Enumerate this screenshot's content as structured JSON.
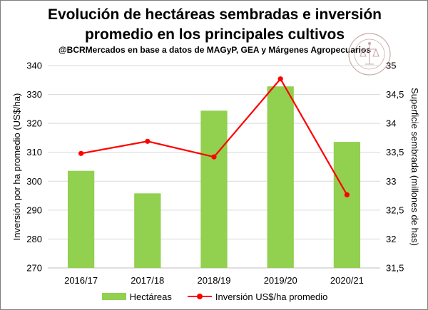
{
  "chart_data": {
    "type": "bar+line",
    "title_line1": "Evolución de hectáreas sembradas e inversión",
    "title_line2": "promedio en los principales cultivos",
    "subtitle": "@BCRMercados  en base a datos de MAGyP, GEA y Márgenes Agropecuarios",
    "categories": [
      "2016/17",
      "2017/18",
      "2018/19",
      "2019/20",
      "2020/21"
    ],
    "y_left": {
      "label": "Inversión por ha promedio (US$/ha)",
      "min": 270,
      "max": 340,
      "ticks": [
        "270",
        "280",
        "290",
        "300",
        "310",
        "320",
        "330",
        "340"
      ]
    },
    "y_right": {
      "label": "Superficie sembrada (millones de has)",
      "min": 31.5,
      "max": 35,
      "ticks": [
        "31,5",
        "32",
        "32,5",
        "33",
        "33,5",
        "34",
        "34,5",
        "35"
      ]
    },
    "series": [
      {
        "name": "Hectáreas",
        "kind": "bar",
        "axis": "right",
        "color": "#92d050",
        "values": [
          33.18,
          32.79,
          34.22,
          34.64,
          33.68
        ]
      },
      {
        "name": "Inversión US$/ha promedio",
        "kind": "line",
        "axis": "left",
        "color": "#ff0000",
        "values": [
          309.6,
          313.8,
          308.4,
          335.4,
          295.3
        ]
      }
    ],
    "grid": true,
    "legend_position": "bottom"
  }
}
